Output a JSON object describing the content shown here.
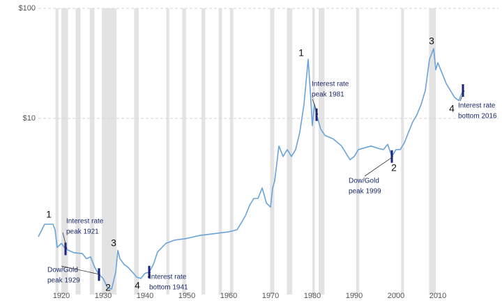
{
  "chart_data": {
    "type": "line",
    "log_scale": true,
    "grid": true,
    "xlim": [
      1914.5,
      2024.5
    ],
    "ylim": [
      0.25,
      100
    ],
    "xticks": [
      1920,
      1930,
      1940,
      1950,
      1960,
      1970,
      1980,
      1990,
      2000,
      2010
    ],
    "yticks": [
      {
        "value": 100,
        "label": "$100"
      },
      {
        "value": 10,
        "label": "$10"
      }
    ],
    "color": "#6aa3d9",
    "band_color": "#e3e3e3",
    "marker_color": "#1a237e",
    "recession_bands": [
      [
        1918.6,
        1919.3
      ],
      [
        1920.0,
        1921.6
      ],
      [
        1923.4,
        1924.6
      ],
      [
        1926.8,
        1927.9
      ],
      [
        1929.7,
        1933.2
      ],
      [
        1937.4,
        1938.5
      ],
      [
        1945.1,
        1945.8
      ],
      [
        1948.9,
        1949.8
      ],
      [
        1953.5,
        1954.4
      ],
      [
        1957.6,
        1958.4
      ],
      [
        1960.3,
        1961.1
      ],
      [
        1969.9,
        1970.9
      ],
      [
        1973.9,
        1975.2
      ],
      [
        1980.0,
        1980.6
      ],
      [
        1981.5,
        1982.9
      ],
      [
        1990.5,
        1991.2
      ],
      [
        2001.2,
        2001.9
      ],
      [
        2007.9,
        2009.5
      ]
    ],
    "x": [
      1914.5,
      1916,
      1918,
      1918.5,
      1919,
      1920,
      1921,
      1923,
      1925,
      1926,
      1927,
      1928,
      1929,
      1930,
      1931,
      1932,
      1933,
      1933.5,
      1934,
      1935,
      1936,
      1937,
      1938,
      1939,
      1940,
      1941,
      1942,
      1943,
      1945,
      1947,
      1950,
      1953,
      1956,
      1960,
      1962,
      1963,
      1964,
      1965,
      1966,
      1967,
      1968,
      1968.5,
      1969,
      1970,
      1970.5,
      1971,
      1972,
      1973,
      1974,
      1975,
      1976,
      1977,
      1978,
      1979,
      1979.5,
      1980,
      1980.5,
      1981,
      1982,
      1983,
      1985,
      1987,
      1989,
      1990,
      1991,
      1994,
      1996,
      1997,
      1998,
      1999,
      2000,
      2001,
      2002,
      2003,
      2004,
      2005,
      2006,
      2007,
      2008,
      2009,
      2009.5,
      2010,
      2011,
      2012,
      2013,
      2014,
      2015,
      2016
    ],
    "values": [
      0.84,
      1.09,
      1.09,
      0.97,
      0.67,
      0.73,
      0.65,
      0.6,
      0.59,
      0.53,
      0.55,
      0.44,
      0.38,
      0.35,
      0.29,
      0.28,
      0.4,
      0.63,
      0.53,
      0.47,
      0.44,
      0.4,
      0.36,
      0.35,
      0.39,
      0.4,
      0.47,
      0.61,
      0.73,
      0.78,
      0.81,
      0.86,
      0.89,
      0.93,
      0.97,
      1.12,
      1.3,
      1.62,
      1.87,
      1.87,
      2.33,
      2.0,
      1.7,
      1.56,
      2.33,
      2.7,
      5.6,
      4.5,
      5.2,
      4.5,
      5.2,
      7.5,
      13.4,
      34.5,
      17.9,
      8.6,
      13.4,
      10.8,
      8.0,
      7.0,
      6.5,
      5.6,
      4.2,
      4.5,
      5.2,
      5.6,
      5.3,
      5.2,
      5.8,
      4.5,
      5.2,
      5.2,
      6.0,
      7.5,
      9.3,
      10.8,
      13.4,
      17.9,
      34.5,
      43,
      27.7,
      32,
      25.8,
      20.7,
      17.9,
      15.5,
      14.5,
      17.9
    ],
    "markers": [
      1921,
      1929,
      1941,
      1981,
      1999,
      2016
    ],
    "cycle_labels": [
      "1",
      "2",
      "3",
      "4",
      "1",
      "2",
      "3",
      "4"
    ],
    "annotations": [
      {
        "lines": [
          "Interest rate",
          "peak 1921"
        ]
      },
      {
        "lines": [
          "Dow/Gold",
          "peak 1929"
        ]
      },
      {
        "lines": [
          "Interest rate",
          "bottom 1941"
        ]
      },
      {
        "lines": [
          "Interest rate",
          "peak 1981"
        ]
      },
      {
        "lines": [
          "Dow/Gold",
          "peak 1999"
        ]
      },
      {
        "lines": [
          "Interest rate",
          "bottom 2016"
        ]
      }
    ]
  }
}
